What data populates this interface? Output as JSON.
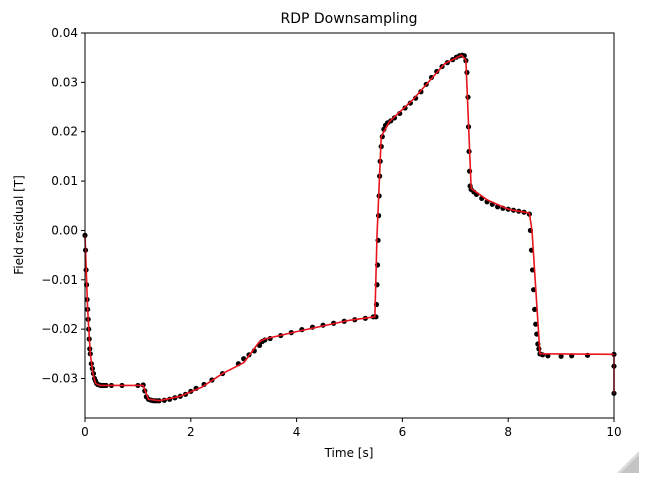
{
  "chart_data": {
    "type": "line",
    "title": "RDP Downsampling",
    "xlabel": "Time [s]",
    "ylabel": "Field residual [T]",
    "xlim": [
      0,
      10
    ],
    "ylim": [
      -0.038,
      0.04
    ],
    "xticks": [
      0,
      2,
      4,
      6,
      8,
      10
    ],
    "xtick_labels": [
      "0",
      "2",
      "4",
      "6",
      "8",
      "10"
    ],
    "yticks": [
      -0.03,
      -0.02,
      -0.01,
      0.0,
      0.01,
      0.02,
      0.03,
      0.04
    ],
    "ytick_labels": [
      "−0.03",
      "−0.02",
      "−0.01",
      "0.00",
      "0.01",
      "0.02",
      "0.03",
      "0.04"
    ],
    "grid": false,
    "series": [
      {
        "style": "points",
        "color": "#000000",
        "x": [
          0,
          0.01,
          0.02,
          0.03,
          0.04,
          0.05,
          0.06,
          0.07,
          0.08,
          0.09,
          0.1,
          0.12,
          0.14,
          0.16,
          0.18,
          0.2,
          0.22,
          0.24,
          0.27,
          0.3,
          0.33,
          0.36,
          0.4,
          0.5,
          0.7,
          1.0,
          1.1,
          1.13,
          1.16,
          1.2,
          1.25,
          1.3,
          1.35,
          1.4,
          1.5,
          1.6,
          1.7,
          1.8,
          1.9,
          2.0,
          2.1,
          2.25,
          2.4,
          2.6,
          2.9,
          3.0,
          3.1,
          3.2,
          3.3,
          3.35,
          3.4,
          3.5,
          3.7,
          3.9,
          4.1,
          4.3,
          4.5,
          4.7,
          4.9,
          5.1,
          5.3,
          5.45,
          5.5,
          5.51,
          5.52,
          5.53,
          5.54,
          5.55,
          5.56,
          5.57,
          5.58,
          5.6,
          5.62,
          5.65,
          5.68,
          5.72,
          5.78,
          5.85,
          5.95,
          6.05,
          6.15,
          6.25,
          6.35,
          6.45,
          6.55,
          6.65,
          6.75,
          6.85,
          6.95,
          7.02,
          7.08,
          7.13,
          7.17,
          7.2,
          7.22,
          7.24,
          7.25,
          7.26,
          7.27,
          7.28,
          7.3,
          7.35,
          7.4,
          7.5,
          7.6,
          7.7,
          7.8,
          7.9,
          8.0,
          8.1,
          8.2,
          8.3,
          8.4,
          8.42,
          8.44,
          8.46,
          8.48,
          8.5,
          8.52,
          8.54,
          8.56,
          8.58,
          8.6,
          8.65,
          8.75,
          9.0,
          9.2,
          9.5,
          10.0,
          10.0,
          10.0
        ],
        "y": [
          -0.001,
          -0.004,
          -0.008,
          -0.011,
          -0.014,
          -0.016,
          -0.018,
          -0.02,
          -0.022,
          -0.024,
          -0.025,
          -0.027,
          -0.028,
          -0.029,
          -0.03,
          -0.0305,
          -0.031,
          -0.0312,
          -0.0313,
          -0.0314,
          -0.0314,
          -0.0314,
          -0.0314,
          -0.0314,
          -0.0314,
          -0.0314,
          -0.0313,
          -0.0325,
          -0.0337,
          -0.0342,
          -0.0344,
          -0.0345,
          -0.0345,
          -0.0345,
          -0.0344,
          -0.0342,
          -0.0339,
          -0.0336,
          -0.0332,
          -0.0326,
          -0.032,
          -0.0312,
          -0.0303,
          -0.029,
          -0.027,
          -0.026,
          -0.0252,
          -0.0244,
          -0.0233,
          -0.0225,
          -0.0222,
          -0.0219,
          -0.0213,
          -0.0207,
          -0.0201,
          -0.0196,
          -0.0192,
          -0.0188,
          -0.0184,
          -0.0181,
          -0.0178,
          -0.0175,
          -0.0175,
          -0.015,
          -0.011,
          -0.007,
          -0.002,
          0.003,
          0.007,
          0.011,
          0.014,
          0.017,
          0.019,
          0.0205,
          0.0213,
          0.0218,
          0.0222,
          0.0228,
          0.0237,
          0.0248,
          0.0258,
          0.0268,
          0.0281,
          0.0296,
          0.031,
          0.0322,
          0.0332,
          0.034,
          0.0346,
          0.0351,
          0.0354,
          0.0355,
          0.0354,
          0.0344,
          0.032,
          0.027,
          0.021,
          0.016,
          0.012,
          0.009,
          0.0083,
          0.0078,
          0.0073,
          0.0065,
          0.0058,
          0.0053,
          0.0048,
          0.0045,
          0.0043,
          0.0041,
          0.0039,
          0.0037,
          0.0033,
          0.0,
          -0.004,
          -0.008,
          -0.012,
          -0.016,
          -0.019,
          -0.021,
          -0.023,
          -0.024,
          -0.025,
          -0.0252,
          -0.0254,
          -0.0255,
          -0.0254,
          -0.0253,
          -0.0251,
          -0.0275,
          -0.033
        ]
      },
      {
        "style": "line",
        "color": "#e8141e",
        "x": [
          0,
          0.05,
          0.1,
          0.15,
          0.2,
          0.28,
          0.35,
          0.5,
          1.1,
          1.2,
          1.4,
          1.8,
          2.2,
          2.6,
          3.0,
          3.3,
          3.4,
          4.0,
          5.0,
          5.48,
          5.52,
          5.6,
          5.75,
          6.2,
          6.8,
          7.12,
          7.2,
          7.3,
          7.6,
          8.0,
          8.4,
          8.45,
          8.6,
          10.0,
          10.0
        ],
        "y": [
          -0.001,
          -0.016,
          -0.025,
          -0.029,
          -0.031,
          -0.0314,
          -0.0314,
          -0.0314,
          -0.0314,
          -0.0342,
          -0.0345,
          -0.0336,
          -0.0318,
          -0.029,
          -0.0268,
          -0.0225,
          -0.022,
          -0.0205,
          -0.0182,
          -0.0175,
          -0.001,
          0.019,
          0.022,
          0.0265,
          0.0338,
          0.0355,
          0.0345,
          0.0085,
          0.0062,
          0.0043,
          0.0035,
          0.0,
          -0.025,
          -0.0251,
          -0.033
        ]
      }
    ]
  }
}
